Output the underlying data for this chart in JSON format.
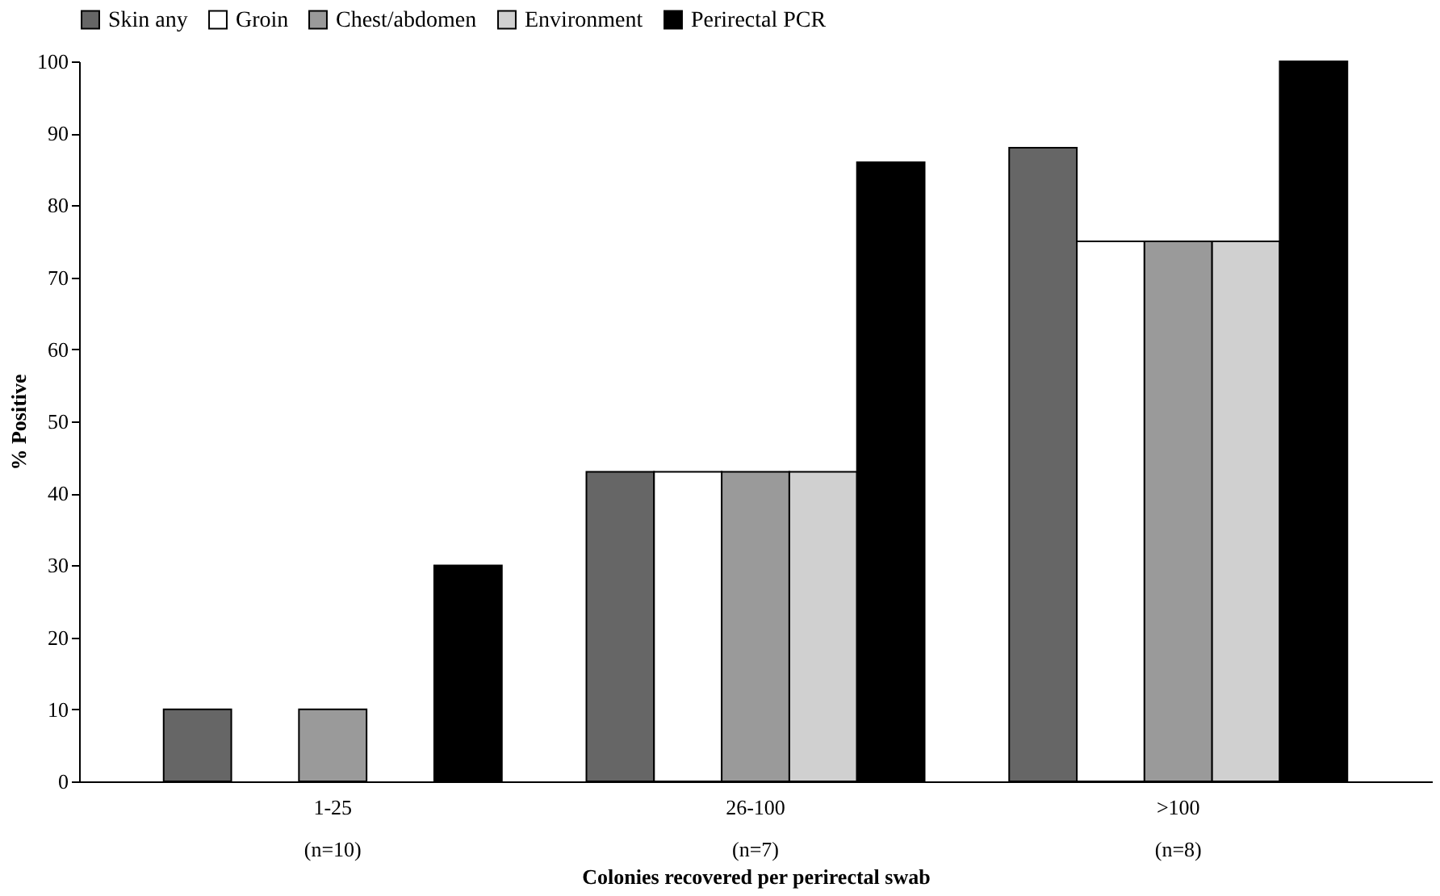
{
  "chart_data": {
    "type": "bar",
    "xlabel": "Colonies recovered per perirectal swab",
    "ylabel": "% Positive",
    "categories": [
      "1-25\n(n=10)",
      "26-100\n(n=7)",
      ">100\n(n=8)"
    ],
    "series": [
      {
        "name": "Skin any",
        "color": "#666666",
        "values": [
          10,
          43,
          88
        ]
      },
      {
        "name": "Groin",
        "color": "#ffffff",
        "values": [
          0,
          43,
          75
        ]
      },
      {
        "name": "Chest/abdomen",
        "color": "#9a9a9a",
        "values": [
          10,
          43,
          75
        ]
      },
      {
        "name": "Environment",
        "color": "#d0d0d0",
        "values": [
          0,
          43,
          75
        ]
      },
      {
        "name": "Perirectal PCR",
        "color": "#000000",
        "values": [
          30,
          86,
          100
        ]
      }
    ],
    "ylim": [
      0,
      100
    ],
    "yticks": [
      0,
      10,
      20,
      30,
      40,
      50,
      60,
      70,
      80,
      90,
      100
    ],
    "grid": false,
    "legend": "top"
  }
}
